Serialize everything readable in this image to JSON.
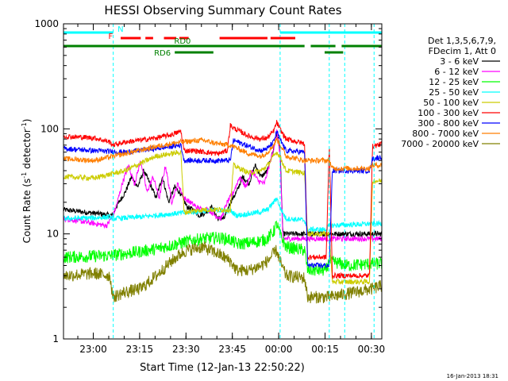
{
  "chart_data": {
    "type": "line",
    "title": "HESSI Observing Summary Count Rates",
    "xlabel": "Start Time (12-Jan-13 22:50:22)",
    "ylabel_main": "Count Rate (s",
    "ylabel_sup1": "-1",
    "ylabel_mid": " detector",
    "ylabel_sup2": "-1",
    "ylabel_end": ")",
    "y_scale": "log",
    "ylim": [
      1,
      1000
    ],
    "xlim_min": [
      0,
      103
    ],
    "x_tick_labels": [
      "23:00",
      "23:15",
      "23:30",
      "23:45",
      "00:00",
      "00:15",
      "00:30"
    ],
    "x_tick_positions_min": [
      9.633,
      24.633,
      39.633,
      54.633,
      69.633,
      84.633,
      99.633
    ],
    "y_tick_labels": [
      "1",
      "10",
      "100",
      "1000"
    ],
    "y_tick_values": [
      1,
      10,
      100,
      1000
    ],
    "legend_header": [
      "Det 1,3,5,6,7,9,",
      "FDecim 1, Att 0"
    ],
    "legend_position": "right",
    "timestamp": "16-Jan-2013 18:31",
    "flags": [
      {
        "name": "N",
        "label": "N",
        "color": "#00ffff",
        "segments": [
          [
            0,
            16.1
          ],
          [
            70.1,
            103
          ]
        ]
      },
      {
        "name": "F",
        "label": "F",
        "color": "#ff0000",
        "segments": [
          [
            18.5,
            25
          ],
          [
            26.5,
            29
          ],
          [
            32.5,
            36.5
          ],
          [
            37.5,
            40.5
          ],
          [
            50.5,
            66
          ],
          [
            67,
            75
          ]
        ]
      },
      {
        "name": "RD0",
        "label": "RD0",
        "color": "#008000",
        "segments": [
          [
            0,
            78
          ],
          [
            80,
            88
          ],
          [
            90,
            103
          ]
        ]
      },
      {
        "name": "RD6",
        "label": "RD6",
        "color": "#008000",
        "segments": [
          [
            36,
            48.5
          ],
          [
            84.5,
            90.5
          ]
        ]
      }
    ],
    "vlines_min": [
      16.1,
      70.1,
      86,
      91,
      100.5
    ],
    "series": [
      {
        "name": "3 - 6 keV",
        "color": "#000000",
        "x": [
          0,
          16,
          17,
          20,
          22,
          24,
          26,
          28,
          30,
          32,
          34,
          36,
          38,
          40,
          42,
          44,
          46,
          48,
          50,
          52,
          54,
          56,
          58,
          60,
          62,
          64,
          66,
          68,
          69,
          70,
          71
        ],
        "y": [
          17,
          15,
          18,
          25,
          35,
          28,
          40,
          30,
          22,
          35,
          20,
          28,
          24,
          18,
          17,
          15,
          16,
          18,
          14,
          14,
          20,
          25,
          35,
          30,
          45,
          35,
          40,
          65,
          90,
          70,
          10
        ]
      },
      {
        "name": "6 - 12 keV",
        "color": "#ff00ff",
        "x": [
          0,
          14,
          16,
          17,
          19,
          21,
          23,
          25,
          27,
          29,
          31,
          33,
          35,
          37,
          39,
          41,
          43,
          45,
          47,
          49,
          51,
          53,
          55,
          57,
          59,
          61,
          63,
          65,
          67,
          68,
          69,
          70,
          71
        ],
        "y": [
          14,
          12,
          15,
          18,
          30,
          45,
          30,
          50,
          25,
          35,
          22,
          45,
          20,
          30,
          22,
          20,
          18,
          17,
          17,
          15,
          14,
          20,
          25,
          35,
          28,
          40,
          32,
          30,
          50,
          65,
          95,
          60,
          9
        ]
      },
      {
        "name": "12 - 25 keV",
        "color": "#00ff00",
        "x": [
          0,
          15,
          20,
          25,
          30,
          35,
          40,
          45,
          50,
          54,
          56,
          60,
          64,
          66,
          68,
          69,
          70,
          72,
          78,
          79,
          85,
          86,
          90,
          92,
          100
        ],
        "y": [
          6,
          6.2,
          6.5,
          6.8,
          7.2,
          7.8,
          8.5,
          9.0,
          9.2,
          8.8,
          8.0,
          8.2,
          8.6,
          9.0,
          10.5,
          12.5,
          10.0,
          7.5,
          7.0,
          4.5,
          4.5,
          5.5,
          5.2,
          5.0,
          5.2
        ]
      },
      {
        "name": "25 - 50 keV",
        "color": "#00ffff",
        "x": [
          0,
          10,
          15,
          16,
          20,
          25,
          30,
          35,
          40,
          45,
          50,
          54,
          56,
          60,
          64,
          66,
          68,
          69,
          70,
          72,
          78,
          79,
          85,
          86,
          100
        ],
        "y": [
          14,
          14.2,
          14.5,
          14.0,
          14.2,
          14.5,
          15.0,
          15.5,
          16.0,
          16.5,
          16.8,
          16.5,
          15.0,
          15.5,
          16.2,
          17.0,
          20.0,
          22.0,
          18.0,
          14.0,
          13.5,
          11.0,
          11.0,
          12.0,
          12.5
        ]
      },
      {
        "name": "50 - 100 keV",
        "color": "#cccc00",
        "x": [
          0,
          10,
          20,
          30,
          38,
          39,
          45,
          50,
          54,
          55,
          60,
          64,
          66,
          68,
          69,
          70,
          72,
          78,
          79,
          86,
          87,
          99,
          100,
          103
        ],
        "y": [
          35,
          34,
          40,
          55,
          60,
          16,
          17,
          17,
          17,
          45,
          38,
          40,
          45,
          55,
          60,
          55,
          40,
          38,
          10,
          10,
          3.5,
          3.5,
          32,
          32
        ]
      },
      {
        "name": "100 - 300 keV",
        "color": "#ff0000",
        "x": [
          0,
          10,
          15,
          16,
          20,
          25,
          30,
          35,
          38,
          39,
          42,
          46,
          50,
          53,
          54,
          55,
          60,
          64,
          66,
          68,
          69,
          70,
          72,
          76,
          78,
          79,
          85,
          86,
          87,
          99,
          100,
          103
        ],
        "y": [
          85,
          82,
          75,
          70,
          75,
          78,
          82,
          88,
          95,
          62,
          62,
          60,
          58,
          62,
          108,
          102,
          85,
          80,
          82,
          95,
          115,
          100,
          80,
          75,
          72,
          6,
          6,
          70,
          4,
          4,
          68,
          72
        ]
      },
      {
        "name": "300 - 800 keV",
        "color": "#0000ff",
        "x": [
          0,
          10,
          20,
          30,
          38,
          39,
          45,
          54,
          55,
          60,
          64,
          66,
          68,
          69,
          70,
          72,
          78,
          79,
          86,
          87,
          99,
          100,
          103
        ],
        "y": [
          65,
          62,
          60,
          65,
          70,
          50,
          50,
          50,
          78,
          68,
          62,
          65,
          75,
          95,
          80,
          62,
          60,
          5,
          5,
          40,
          40,
          52,
          54
        ]
      },
      {
        "name": "800 - 7000 keV",
        "color": "#ff7f00",
        "x": [
          0,
          10,
          20,
          30,
          38,
          45,
          50,
          54,
          60,
          64,
          66,
          68,
          69,
          70,
          72,
          78,
          79,
          86,
          87,
          99,
          100,
          103
        ],
        "y": [
          52,
          50,
          58,
          68,
          75,
          78,
          72,
          70,
          58,
          55,
          60,
          70,
          80,
          72,
          55,
          50,
          50,
          50,
          42,
          42,
          45,
          45
        ]
      },
      {
        "name": "7000 - 20000 keV",
        "color": "#808000",
        "x": [
          0,
          10,
          15,
          16,
          20,
          25,
          30,
          35,
          38,
          40,
          45,
          50,
          54,
          56,
          60,
          64,
          66,
          68,
          69,
          70,
          72,
          78,
          79,
          86,
          100,
          103
        ],
        "y": [
          4,
          4.2,
          4.0,
          2.5,
          2.8,
          3.0,
          4.0,
          5.5,
          6.5,
          7.0,
          7.5,
          6.5,
          5.5,
          4.5,
          4.5,
          5.0,
          5.5,
          6.5,
          7.0,
          5.5,
          4.0,
          3.8,
          2.5,
          2.5,
          3.0,
          3.2
        ]
      }
    ]
  }
}
